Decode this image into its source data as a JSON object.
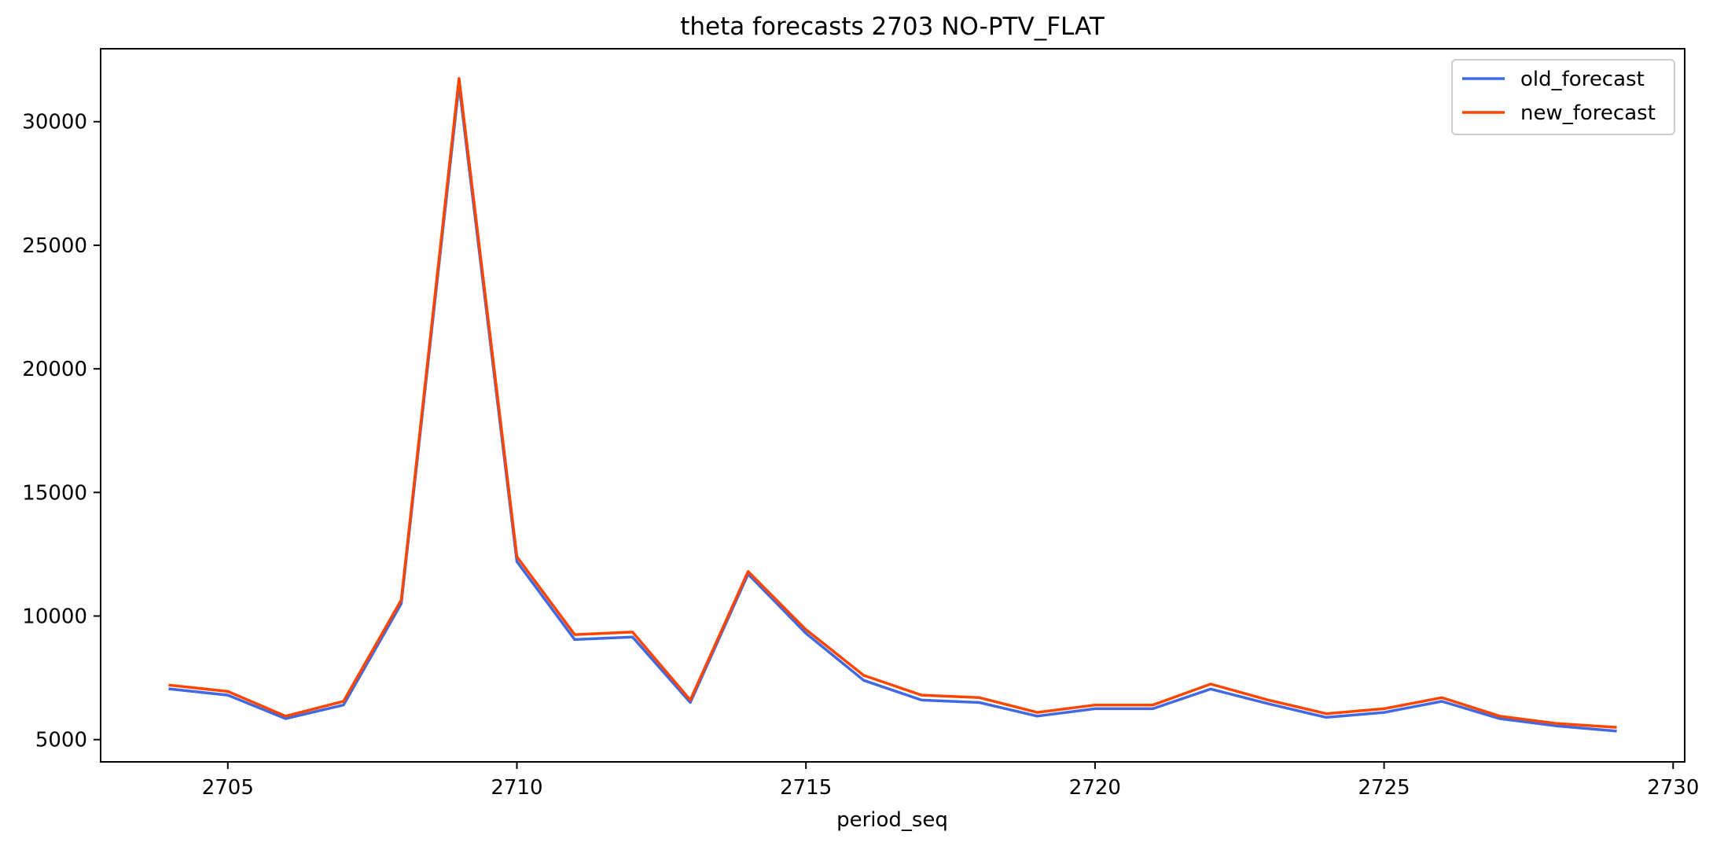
{
  "chart_data": {
    "type": "line",
    "title": "theta forecasts 2703 NO-PTV_FLAT",
    "xlabel": "period_seq",
    "ylabel": "",
    "xlim": [
      2702.8,
      2730.2
    ],
    "ylim": [
      4100,
      32950
    ],
    "xticks": [
      2705,
      2710,
      2715,
      2720,
      2725,
      2730
    ],
    "yticks": [
      5000,
      10000,
      15000,
      20000,
      25000,
      30000
    ],
    "legend_position": "top-right",
    "grid": false,
    "x": [
      2704,
      2705,
      2706,
      2707,
      2708,
      2709,
      2710,
      2711,
      2712,
      2713,
      2714,
      2715,
      2716,
      2717,
      2718,
      2719,
      2720,
      2721,
      2722,
      2723,
      2724,
      2725,
      2726,
      2727,
      2728,
      2729
    ],
    "series": [
      {
        "name": "old_forecast",
        "color": "#4169e1",
        "values": [
          7050,
          6800,
          5850,
          6400,
          10500,
          31500,
          12200,
          9050,
          9150,
          6500,
          11700,
          9300,
          7400,
          6600,
          6500,
          5950,
          6250,
          6250,
          7050,
          6450,
          5900,
          6100,
          6550,
          5850,
          5550,
          5350
        ]
      },
      {
        "name": "new_forecast",
        "color": "#ff4500",
        "values": [
          7200,
          6950,
          5950,
          6550,
          10650,
          31750,
          12400,
          9250,
          9350,
          6600,
          11800,
          9450,
          7600,
          6800,
          6700,
          6100,
          6400,
          6400,
          7250,
          6600,
          6050,
          6250,
          6700,
          5950,
          5650,
          5500
        ]
      }
    ]
  }
}
